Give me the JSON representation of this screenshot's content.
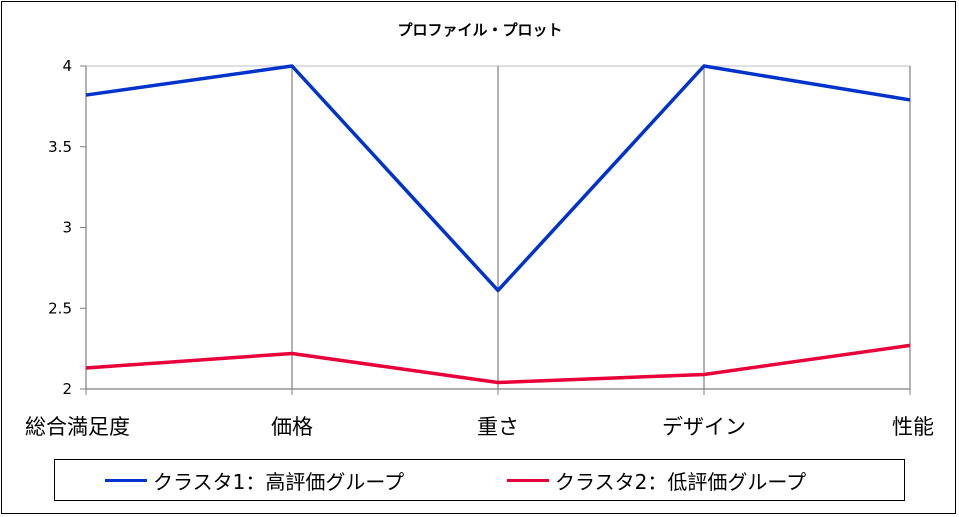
{
  "chart_data": {
    "type": "line",
    "title": "プロファイル・プロット",
    "categories": [
      "総合満足度",
      "価格",
      "重さ",
      "デザイン",
      "性能"
    ],
    "ylim": [
      2,
      4
    ],
    "yticks": [
      "4",
      "3.5",
      "3",
      "2.5",
      "2"
    ],
    "ytick_values": [
      4,
      3.5,
      3,
      2.5,
      2
    ],
    "vertical_gridlines": true,
    "legend_position": "bottom",
    "series": [
      {
        "name": "クラスタ1：高評価グループ",
        "color": "#0033CC",
        "values": [
          3.82,
          4.0,
          2.61,
          4.0,
          3.79
        ]
      },
      {
        "name": "クラスタ2：低評価グループ",
        "color": "#E8003A",
        "values": [
          2.13,
          2.22,
          2.04,
          2.09,
          2.27
        ]
      }
    ]
  }
}
